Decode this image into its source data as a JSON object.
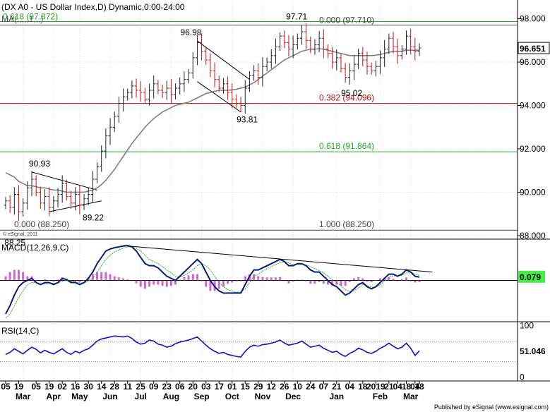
{
  "colors": {
    "background": "#ffffff",
    "grid": "#d8d8d8",
    "bar_up": "#222222",
    "bar_down": "#cc1111",
    "ma": "#808080",
    "fib_green": "#22aa22",
    "fib_dark": "#444444",
    "fib_red": "#b01010",
    "macd_line": "#0a1a7a",
    "signal_line": "#39a839",
    "histogram": "#c040c0",
    "rsi_line": "#1010cc",
    "price_tag_bg": "#ffffff",
    "macd_tag_bg": "#44ee44",
    "rsi_tag_bg": "#ffffff"
  },
  "header": {
    "title": "(DX A0 - US Dollar Index,D) Dynamic,0:00-24:00",
    "ma_label": "MA(,,,,,1,,,)"
  },
  "footer": {
    "copyright": "© eSignal, 2011",
    "publisher": "Published by eSignal (www.esignal.com)"
  },
  "chart_data": [
    {
      "type": "line",
      "subtype": "ohlc-bars",
      "ylim": [
        87.9,
        98.8
      ],
      "y_ticks": [
        "98.000",
        "96.000",
        "94.000",
        "92.000",
        "90.000",
        "88.000"
      ],
      "y_tick_values": [
        98,
        96,
        94,
        92,
        90,
        88
      ],
      "last_value_label": "96.651",
      "last_value": 96.651,
      "series": [
        {
          "values": [
            89.6,
            89.3,
            89.9,
            89.1,
            89.5,
            90.2,
            90.6,
            90.0,
            89.5,
            89.8,
            89.3,
            89.6,
            89.9,
            90.4,
            89.8,
            89.5,
            89.9,
            89.4,
            89.7,
            89.9,
            90.6,
            91.2,
            91.9,
            92.6,
            93.0,
            93.5,
            94.1,
            94.4,
            94.6,
            94.9,
            94.7,
            94.6,
            94.3,
            94.7,
            95.0,
            94.7,
            94.6,
            94.8,
            94.5,
            94.8,
            95.0,
            95.2,
            95.5,
            96.2,
            96.9,
            96.5,
            96.1,
            95.6,
            95.2,
            94.8,
            95.0,
            94.6,
            94.3,
            94.1,
            94.0,
            94.8,
            95.4,
            95.6,
            95.3,
            95.8,
            96.0,
            96.3,
            96.7,
            97.2,
            96.9,
            96.6,
            96.8,
            97.1,
            97.4,
            97.0,
            96.6,
            96.8,
            97.1,
            96.6,
            96.4,
            96.0,
            96.2,
            95.7,
            95.3,
            95.6,
            95.9,
            96.4,
            96.1,
            95.8,
            95.6,
            95.8,
            96.2,
            96.6,
            97.1,
            96.7,
            96.3,
            96.6,
            97.2,
            96.7,
            96.5,
            96.651
          ]
        },
        {
          "name": "MA",
          "values": [
            90.9,
            90.8,
            90.7,
            90.5,
            90.4,
            90.3,
            90.3,
            90.25,
            90.2,
            90.2,
            90.15,
            90.1,
            90.1,
            90.05,
            90.0,
            90.0,
            90.0,
            90.0,
            90.0,
            90.05,
            90.1,
            90.2,
            90.35,
            90.55,
            90.8,
            91.05,
            91.35,
            91.65,
            91.95,
            92.25,
            92.5,
            92.75,
            93.0,
            93.2,
            93.4,
            93.55,
            93.7,
            93.8,
            93.9,
            94.0,
            94.05,
            94.1,
            94.15,
            94.25,
            94.35,
            94.45,
            94.55,
            94.6,
            94.65,
            94.7,
            94.7,
            94.7,
            94.72,
            94.75,
            94.8,
            94.85,
            94.95,
            95.05,
            95.2,
            95.35,
            95.5,
            95.65,
            95.8,
            95.95,
            96.1,
            96.2,
            96.3,
            96.4,
            96.5,
            96.55,
            96.6,
            96.6,
            96.62,
            96.6,
            96.55,
            96.5,
            96.45,
            96.4,
            96.35,
            96.3,
            96.3,
            96.3,
            96.3,
            96.3,
            96.3,
            96.32,
            96.35,
            96.4,
            96.45,
            96.5,
            96.5,
            96.5,
            96.55,
            96.55,
            96.55,
            96.55
          ]
        }
      ],
      "fib_levels": [
        {
          "label": "0.618 (97.872)",
          "value": 97.872,
          "color_key": "fib_green"
        },
        {
          "label": "0.000 (97.710)",
          "value": 97.71,
          "color_key": "fib_dark"
        },
        {
          "label": "0.382 (94.096)",
          "value": 94.096,
          "color_key": "fib_red"
        },
        {
          "label": "0.618 (91.864)",
          "value": 91.864,
          "color_key": "fib_green"
        },
        {
          "label": "1.000 (88.250)",
          "value": 88.25,
          "color_key": "fib_dark"
        },
        {
          "label": "0.000 (88.250)",
          "value": 88.25,
          "color_key": "fib_dark"
        }
      ],
      "annotations": [
        {
          "text": "97.71",
          "value": 97.71,
          "index": 66
        },
        {
          "text": "96.98",
          "value": 96.98,
          "index": 44
        },
        {
          "text": "95.02",
          "value": 95.02,
          "index": 78
        },
        {
          "text": "93.81",
          "value": 93.81,
          "index": 54
        },
        {
          "text": "90.93",
          "value": 90.93,
          "index": 6
        },
        {
          "text": "89.22",
          "value": 89.22,
          "index": 18
        },
        {
          "text": "88.25",
          "value": 88.25,
          "index": 1
        }
      ]
    },
    {
      "type": "line",
      "title": "MACD(12,26,9,C)",
      "ylim": [
        -0.95,
        0.95
      ],
      "last_value_label": "0.079",
      "last_value": 0.079,
      "series": [
        {
          "name": "MACD",
          "values": [
            -0.8,
            -0.6,
            -0.35,
            -0.15,
            -0.05,
            0.0,
            0.05,
            -0.05,
            -0.1,
            -0.05,
            -0.05,
            -0.1,
            -0.05,
            0.05,
            0.02,
            -0.05,
            -0.05,
            -0.1,
            -0.05,
            0.05,
            0.2,
            0.4,
            0.55,
            0.7,
            0.75,
            0.78,
            0.8,
            0.82,
            0.83,
            0.8,
            0.7,
            0.55,
            0.4,
            0.35,
            0.35,
            0.3,
            0.2,
            0.1,
            0.05,
            0.0,
            0.1,
            0.2,
            0.3,
            0.4,
            0.5,
            0.4,
            0.2,
            0.0,
            -0.15,
            -0.25,
            -0.3,
            -0.3,
            -0.3,
            -0.3,
            -0.3,
            -0.1,
            0.1,
            0.25,
            0.25,
            0.3,
            0.35,
            0.4,
            0.45,
            0.5,
            0.45,
            0.35,
            0.35,
            0.4,
            0.4,
            0.35,
            0.25,
            0.2,
            0.2,
            0.1,
            0.0,
            -0.1,
            -0.15,
            -0.25,
            -0.35,
            -0.3,
            -0.2,
            -0.1,
            -0.05,
            -0.15,
            -0.2,
            -0.15,
            -0.05,
            0.05,
            0.15,
            0.15,
            0.1,
            0.15,
            0.25,
            0.2,
            0.1,
            0.079
          ]
        },
        {
          "name": "Signal",
          "values": [
            -0.9,
            -0.8,
            -0.6,
            -0.4,
            -0.25,
            -0.1,
            -0.05,
            -0.05,
            -0.08,
            -0.08,
            -0.06,
            -0.07,
            -0.07,
            -0.02,
            0.0,
            -0.02,
            -0.03,
            -0.06,
            -0.06,
            -0.02,
            0.05,
            0.2,
            0.35,
            0.5,
            0.6,
            0.68,
            0.73,
            0.77,
            0.8,
            0.8,
            0.77,
            0.7,
            0.6,
            0.5,
            0.45,
            0.4,
            0.33,
            0.25,
            0.18,
            0.1,
            0.08,
            0.12,
            0.18,
            0.25,
            0.35,
            0.4,
            0.35,
            0.25,
            0.1,
            -0.05,
            -0.15,
            -0.22,
            -0.25,
            -0.28,
            -0.28,
            -0.2,
            -0.05,
            0.1,
            0.15,
            0.22,
            0.28,
            0.33,
            0.38,
            0.42,
            0.45,
            0.42,
            0.38,
            0.38,
            0.38,
            0.37,
            0.33,
            0.28,
            0.24,
            0.18,
            0.1,
            0.02,
            -0.05,
            -0.12,
            -0.22,
            -0.26,
            -0.25,
            -0.18,
            -0.1,
            -0.12,
            -0.16,
            -0.16,
            -0.1,
            -0.02,
            0.07,
            0.11,
            0.11,
            0.12,
            0.18,
            0.2,
            0.15,
            0.12
          ]
        }
      ],
      "histogram_note": "MACD minus Signal"
    },
    {
      "type": "line",
      "title": "RSI(14,C)",
      "ylim": [
        -5,
        105
      ],
      "y_ticks": [
        "100",
        "50",
        "0"
      ],
      "y_tick_values": [
        100,
        50,
        0
      ],
      "last_value_label": "51.046",
      "last_value": 51.046,
      "series": [
        {
          "name": "RSI",
          "values": [
            44,
            48,
            55,
            50,
            45,
            52,
            58,
            54,
            47,
            52,
            48,
            45,
            50,
            55,
            48,
            44,
            50,
            47,
            52,
            55,
            62,
            70,
            74,
            76,
            78,
            80,
            79,
            78,
            80,
            75,
            68,
            64,
            66,
            72,
            70,
            64,
            62,
            58,
            60,
            65,
            68,
            70,
            72,
            75,
            78,
            70,
            62,
            55,
            50,
            46,
            48,
            44,
            42,
            40,
            39,
            50,
            58,
            62,
            60,
            63,
            64,
            66,
            68,
            72,
            66,
            62,
            64,
            66,
            70,
            64,
            58,
            60,
            62,
            56,
            52,
            48,
            50,
            44,
            40,
            46,
            50,
            56,
            53,
            48,
            46,
            50,
            56,
            60,
            66,
            60,
            55,
            58,
            66,
            56,
            42,
            51
          ]
        }
      ]
    }
  ],
  "x_axis": {
    "day_ticks": [
      {
        "label": "05",
        "index": 0
      },
      {
        "label": "19",
        "index": 3
      },
      {
        "label": "05",
        "index": 7
      },
      {
        "label": "19",
        "index": 10
      },
      {
        "label": "02",
        "index": 13
      },
      {
        "label": "16",
        "index": 16
      },
      {
        "label": "30",
        "index": 19
      },
      {
        "label": "14",
        "index": 22
      },
      {
        "label": "28",
        "index": 25
      },
      {
        "label": "11",
        "index": 28
      },
      {
        "label": "25",
        "index": 31
      },
      {
        "label": "09",
        "index": 34
      },
      {
        "label": "23",
        "index": 37
      },
      {
        "label": "06",
        "index": 40
      },
      {
        "label": "20",
        "index": 43
      },
      {
        "label": "03",
        "index": 46
      },
      {
        "label": "17",
        "index": 49
      },
      {
        "label": "01",
        "index": 52
      },
      {
        "label": "15",
        "index": 55
      },
      {
        "label": "29",
        "index": 58
      },
      {
        "label": "12",
        "index": 61
      },
      {
        "label": "26",
        "index": 64
      },
      {
        "label": "10",
        "index": 67
      },
      {
        "label": "24",
        "index": 70
      },
      {
        "label": "07",
        "index": 73
      },
      {
        "label": "21",
        "index": 76
      },
      {
        "label": "04",
        "index": 79
      },
      {
        "label": "18",
        "index": 82
      },
      {
        "label": "2019",
        "index": 85
      },
      {
        "label": "21",
        "index": 88
      },
      {
        "label": "04",
        "index": 90
      },
      {
        "label": "18",
        "index": 92
      },
      {
        "label": "04",
        "index": 94
      },
      {
        "label": "18",
        "index": 95
      }
    ],
    "month_ticks": [
      {
        "label": "Mar",
        "index": 4
      },
      {
        "label": "Apr",
        "index": 11
      },
      {
        "label": "May",
        "index": 17
      },
      {
        "label": "Jun",
        "index": 24
      },
      {
        "label": "Jul",
        "index": 31
      },
      {
        "label": "Aug",
        "index": 38
      },
      {
        "label": "Sep",
        "index": 45
      },
      {
        "label": "Oct",
        "index": 52
      },
      {
        "label": "Nov",
        "index": 59
      },
      {
        "label": "Dec",
        "index": 66
      },
      {
        "label": "Jan",
        "index": 76
      },
      {
        "label": "Feb",
        "index": 86
      },
      {
        "label": "Mar",
        "index": 93
      }
    ]
  }
}
